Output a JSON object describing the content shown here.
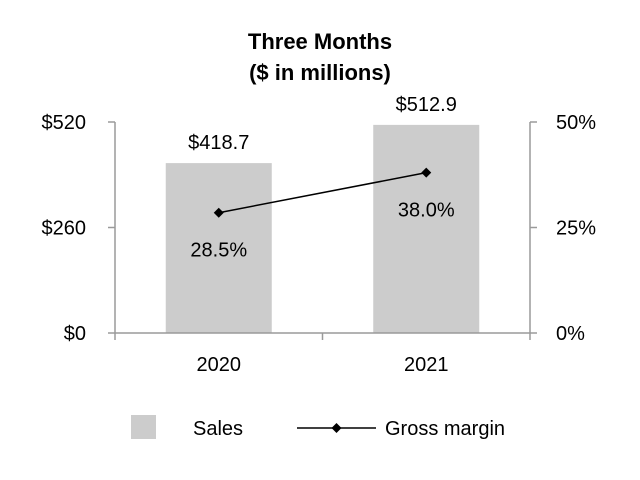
{
  "chart_data": {
    "type": "bar",
    "title": "Three Months",
    "subtitle": "($ in millions)",
    "categories": [
      "2020",
      "2021"
    ],
    "series": [
      {
        "name": "Sales",
        "type": "bar",
        "axis": "left",
        "values": [
          418.7,
          512.9
        ],
        "labels": [
          "$418.7",
          "$512.9"
        ],
        "color": "#cccccc"
      },
      {
        "name": "Gross margin",
        "type": "line",
        "axis": "right",
        "values": [
          28.5,
          38.0
        ],
        "labels": [
          "28.5%",
          "38.0%"
        ],
        "color": "#000000",
        "marker": "diamond"
      }
    ],
    "y_left": {
      "ylim": [
        0,
        520
      ],
      "ticks": [
        0,
        260,
        520
      ],
      "tick_labels": [
        "$0",
        "$260",
        "$520"
      ]
    },
    "y_right": {
      "ylim": [
        0,
        50
      ],
      "ticks": [
        0,
        25,
        50
      ],
      "tick_labels": [
        "0%",
        "25%",
        "50%"
      ]
    },
    "grid": false,
    "legend": "bottom"
  }
}
